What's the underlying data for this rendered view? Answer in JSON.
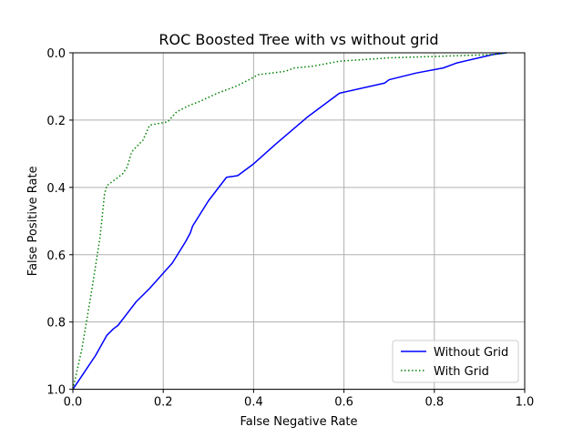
{
  "chart_data": {
    "type": "line",
    "title": "ROC Boosted Tree with vs without grid",
    "xlabel": "False Negative Rate",
    "ylabel": "False Positive Rate",
    "xlim": [
      0.0,
      1.0
    ],
    "ylim": [
      1.0,
      0.0
    ],
    "y_inverted": true,
    "grid": true,
    "legend_position": "lower-right",
    "x_ticks": [
      "0.0",
      "0.2",
      "0.4",
      "0.6",
      "0.8",
      "1.0"
    ],
    "y_ticks": [
      "0.0",
      "0.2",
      "0.4",
      "0.6",
      "0.8",
      "1.0"
    ],
    "series": [
      {
        "name": "Without Grid",
        "color": "#0000ff",
        "style": "solid",
        "x": [
          0.0,
          0.02,
          0.05,
          0.075,
          0.09,
          0.1,
          0.12,
          0.14,
          0.17,
          0.21,
          0.22,
          0.25,
          0.26,
          0.265,
          0.3,
          0.34,
          0.365,
          0.4,
          0.45,
          0.52,
          0.59,
          0.69,
          0.7,
          0.76,
          0.82,
          0.84,
          0.85,
          0.93,
          0.96
        ],
        "y": [
          1.0,
          0.96,
          0.9,
          0.84,
          0.82,
          0.81,
          0.775,
          0.74,
          0.7,
          0.64,
          0.625,
          0.56,
          0.535,
          0.515,
          0.44,
          0.37,
          0.365,
          0.33,
          0.27,
          0.19,
          0.12,
          0.09,
          0.08,
          0.06,
          0.045,
          0.035,
          0.03,
          0.005,
          0.0
        ]
      },
      {
        "name": "With Grid",
        "color": "#008000",
        "style": "dotted",
        "x": [
          0.0,
          0.02,
          0.04,
          0.06,
          0.07,
          0.075,
          0.09,
          0.11,
          0.12,
          0.13,
          0.14,
          0.155,
          0.17,
          0.19,
          0.21,
          0.22,
          0.23,
          0.26,
          0.28,
          0.32,
          0.36,
          0.39,
          0.41,
          0.47,
          0.49,
          0.53,
          0.59,
          0.7,
          0.82,
          0.93,
          0.96
        ],
        "y": [
          1.0,
          0.88,
          0.72,
          0.55,
          0.42,
          0.395,
          0.38,
          0.36,
          0.34,
          0.295,
          0.28,
          0.26,
          0.215,
          0.21,
          0.205,
          0.19,
          0.175,
          0.155,
          0.145,
          0.12,
          0.1,
          0.08,
          0.065,
          0.055,
          0.045,
          0.04,
          0.025,
          0.015,
          0.01,
          0.005,
          0.0
        ]
      }
    ]
  }
}
